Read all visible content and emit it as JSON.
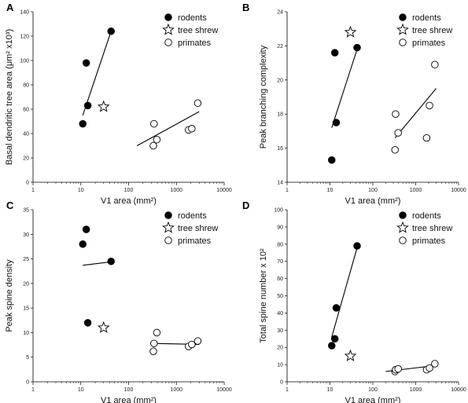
{
  "legend": {
    "rodents": "rodents",
    "tree_shrew": "tree shrew",
    "primates": "primates"
  },
  "colors": {
    "rodents": "#000000",
    "primates": "#ffffff",
    "stroke": "#000000"
  },
  "chart_data": [
    {
      "panel": "A",
      "type": "scatter",
      "xlabel": "V1 area (mm²)",
      "ylabel": "Basal dendritic tree area (μm² x10³)",
      "xscale": "log",
      "xlim": [
        1,
        10000
      ],
      "xticks": [
        1,
        10,
        100,
        1000,
        10000
      ],
      "xtick_labels": [
        "1",
        "10",
        "100",
        "1000",
        "10000"
      ],
      "ylim": [
        0,
        140
      ],
      "yticks": [
        0,
        20,
        40,
        60,
        80,
        100,
        120,
        140
      ],
      "ytick_labels": [
        "0",
        "20",
        "40",
        "60",
        "80",
        "100",
        "120",
        "140"
      ],
      "legend_position": "top-right",
      "series": [
        {
          "name": "rodents",
          "marker": "filled-circle",
          "points": [
            [
              11,
              48
            ],
            [
              13,
              98
            ],
            [
              14,
              63
            ],
            [
              43,
              124
            ]
          ],
          "fit": [
            [
              11,
              55
            ],
            [
              43,
              124
            ]
          ]
        },
        {
          "name": "tree shrew",
          "marker": "star",
          "points": [
            [
              30,
              62
            ]
          ]
        },
        {
          "name": "primates",
          "marker": "open-circle",
          "points": [
            [
              330,
              30
            ],
            [
              340,
              48
            ],
            [
              390,
              35
            ],
            [
              1800,
              43
            ],
            [
              2100,
              44
            ],
            [
              2800,
              65
            ]
          ],
          "fit": [
            [
              150,
              30
            ],
            [
              3000,
              58
            ]
          ]
        }
      ]
    },
    {
      "panel": "B",
      "type": "scatter",
      "xlabel": "V1 area (mm²)",
      "ylabel": "Peak branching complexity",
      "xscale": "log",
      "xlim": [
        1,
        10000
      ],
      "xticks": [
        1,
        10,
        100,
        1000,
        10000
      ],
      "xtick_labels": [
        "1",
        "10",
        "100",
        "1000",
        "10000"
      ],
      "ylim": [
        14,
        24
      ],
      "yticks": [
        14,
        16,
        18,
        20,
        22,
        24
      ],
      "ytick_labels": [
        "14",
        "16",
        "18",
        "20",
        "22",
        "24"
      ],
      "legend_position": "top-right",
      "series": [
        {
          "name": "rodents",
          "marker": "filled-circle",
          "points": [
            [
              11,
              15.3
            ],
            [
              13,
              21.6
            ],
            [
              14,
              17.5
            ],
            [
              43,
              21.9
            ]
          ],
          "fit": [
            [
              11,
              17.2
            ],
            [
              43,
              21.8
            ]
          ]
        },
        {
          "name": "tree shrew",
          "marker": "star",
          "points": [
            [
              30,
              22.8
            ]
          ]
        },
        {
          "name": "primates",
          "marker": "open-circle",
          "points": [
            [
              330,
              15.9
            ],
            [
              340,
              18.0
            ],
            [
              390,
              16.9
            ],
            [
              1800,
              16.6
            ],
            [
              2100,
              18.5
            ],
            [
              2800,
              20.9
            ]
          ],
          "fit": [
            [
              330,
              16.6
            ],
            [
              3000,
              19.5
            ]
          ]
        }
      ]
    },
    {
      "panel": "C",
      "type": "scatter",
      "xlabel": "V1 area (mm²)",
      "ylabel": "Peak spine density",
      "xscale": "log",
      "xlim": [
        1,
        10000
      ],
      "xticks": [
        1,
        10,
        100,
        1000,
        10000
      ],
      "xtick_labels": [
        "1",
        "10",
        "100",
        "1000",
        "10000"
      ],
      "ylim": [
        0,
        35
      ],
      "yticks": [
        0,
        5,
        10,
        15,
        20,
        25,
        30,
        35
      ],
      "ytick_labels": [
        "0",
        "5",
        "10",
        "15",
        "20",
        "25",
        "30",
        "35"
      ],
      "legend_position": "top-right",
      "series": [
        {
          "name": "rodents",
          "marker": "filled-circle",
          "points": [
            [
              11,
              28
            ],
            [
              13,
              31
            ],
            [
              14,
              12
            ],
            [
              43,
              24.5
            ]
          ],
          "fit": [
            [
              11,
              23.7
            ],
            [
              43,
              24.4
            ]
          ]
        },
        {
          "name": "tree shrew",
          "marker": "star",
          "points": [
            [
              30,
              11
            ]
          ]
        },
        {
          "name": "primates",
          "marker": "open-circle",
          "points": [
            [
              330,
              6.2
            ],
            [
              340,
              7.8
            ],
            [
              390,
              10
            ],
            [
              1800,
              7.2
            ],
            [
              2100,
              7.6
            ],
            [
              2800,
              8.3
            ]
          ],
          "fit": [
            [
              330,
              7.8
            ],
            [
              3000,
              7.6
            ]
          ]
        }
      ]
    },
    {
      "panel": "D",
      "type": "scatter",
      "xlabel": "V1 area (mm²)",
      "ylabel": "Total spine number x 10²",
      "xscale": "log",
      "xlim": [
        1,
        10000
      ],
      "xticks": [
        1,
        10,
        100,
        1000,
        10000
      ],
      "xtick_labels": [
        "1",
        "10",
        "100",
        "1000",
        "10000"
      ],
      "ylim": [
        0,
        100
      ],
      "yticks": [
        0,
        10,
        20,
        30,
        40,
        50,
        60,
        70,
        80,
        90,
        100
      ],
      "ytick_labels": [
        "0",
        "10",
        "20",
        "30",
        "40",
        "50",
        "60",
        "70",
        "80",
        "90",
        "100"
      ],
      "legend_position": "top-right",
      "series": [
        {
          "name": "rodents",
          "marker": "filled-circle",
          "points": [
            [
              11,
              21
            ],
            [
              13,
              25
            ],
            [
              14,
              43
            ],
            [
              43,
              79
            ]
          ],
          "fit": [
            [
              11,
              26
            ],
            [
              43,
              78
            ]
          ]
        },
        {
          "name": "tree shrew",
          "marker": "star",
          "points": [
            [
              30,
              15
            ]
          ]
        },
        {
          "name": "primates",
          "marker": "open-circle",
          "points": [
            [
              330,
              6
            ],
            [
              340,
              7
            ],
            [
              390,
              7.5
            ],
            [
              1800,
              7
            ],
            [
              2100,
              8
            ],
            [
              2800,
              10.5
            ]
          ],
          "fit": [
            [
              200,
              6
            ],
            [
              3000,
              9.5
            ]
          ]
        }
      ]
    }
  ]
}
